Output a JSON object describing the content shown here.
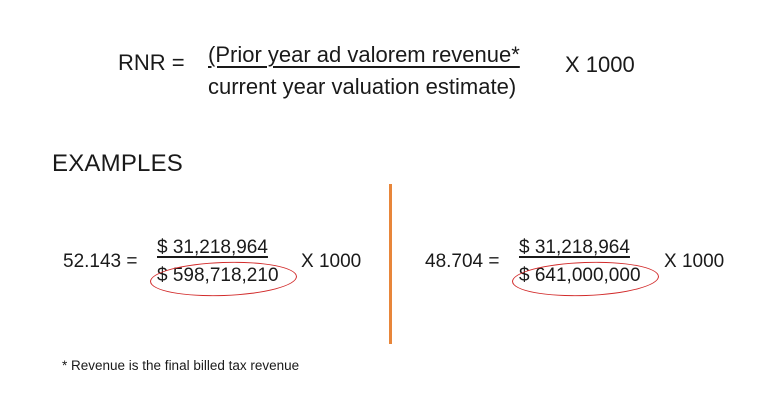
{
  "formula": {
    "lhs": "RNR =",
    "numerator": "(Prior year ad valorem revenue*",
    "denominator": "current year valuation estimate)",
    "multiplier": "X 1000"
  },
  "examples_heading": "EXAMPLES",
  "examples": [
    {
      "lhs": "52.143 =",
      "numerator": "$  31,218,964",
      "denominator": "$ 598,718,210",
      "multiplier": "X 1000"
    },
    {
      "lhs": "48.704 =",
      "numerator": "$  31,218,964",
      "denominator": "$ 641,000,000",
      "multiplier": "X 1000"
    }
  ],
  "footnote": "* Revenue is the final billed tax revenue",
  "colors": {
    "divider": "#e8863a",
    "highlight_circle": "#d22b2b"
  }
}
